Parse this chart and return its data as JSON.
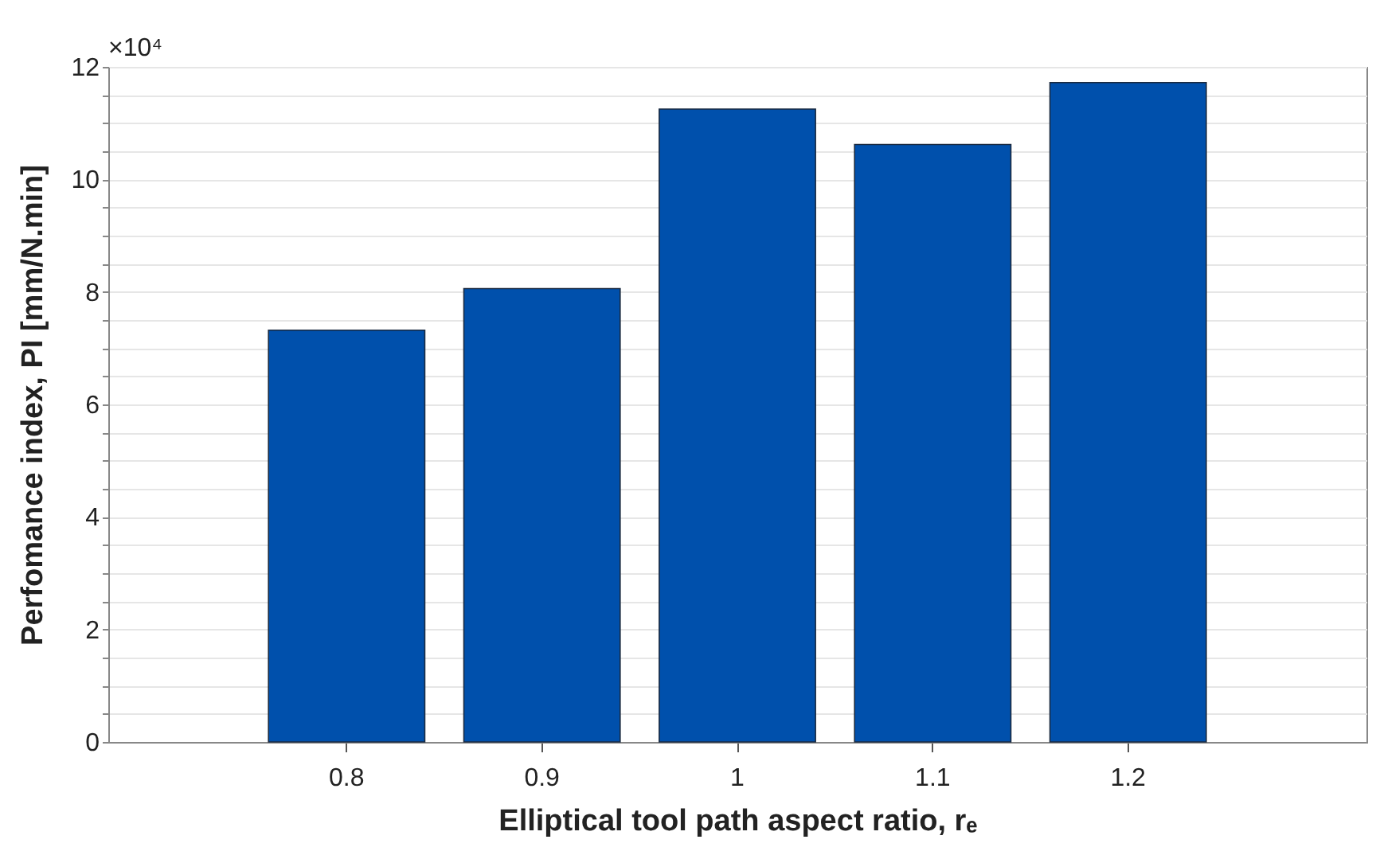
{
  "chart_data": {
    "type": "bar",
    "categories": [
      "0.8",
      "0.9",
      "1",
      "1.1",
      "1.2"
    ],
    "values": [
      7.32,
      8.06,
      11.25,
      10.62,
      11.72
    ],
    "color": "#0050ac",
    "xlabel": "Elliptical tool path aspect ratio, rₑ",
    "ylabel": "Perfomance index, PI [mm/N.min]",
    "annotations": [
      "×10⁴"
    ],
    "ylim": [
      0,
      12
    ],
    "yticks": [
      0,
      {
        "value": 0.5,
        "label": null
      },
      {
        "value": 1,
        "label": null
      },
      {
        "value": 1.5,
        "label": null
      },
      2,
      {
        "value": 2.5,
        "label": null
      },
      {
        "value": 3,
        "label": null
      },
      {
        "value": 3.5,
        "label": null
      },
      4,
      {
        "value": 4.5,
        "label": null
      },
      {
        "value": 5,
        "label": null
      },
      {
        "value": 5.5,
        "label": null
      },
      6,
      {
        "value": 6.5,
        "label": null
      },
      {
        "value": 7,
        "label": null
      },
      {
        "value": 7.5,
        "label": null
      },
      8,
      {
        "value": 8.5,
        "label": null
      },
      {
        "value": 9,
        "label": null
      },
      {
        "value": 9.5,
        "label": null
      },
      10,
      {
        "value": 10.5,
        "label": null
      },
      {
        "value": 11,
        "label": null
      },
      {
        "value": 11.5,
        "label": null
      },
      12
    ],
    "grid": true
  }
}
